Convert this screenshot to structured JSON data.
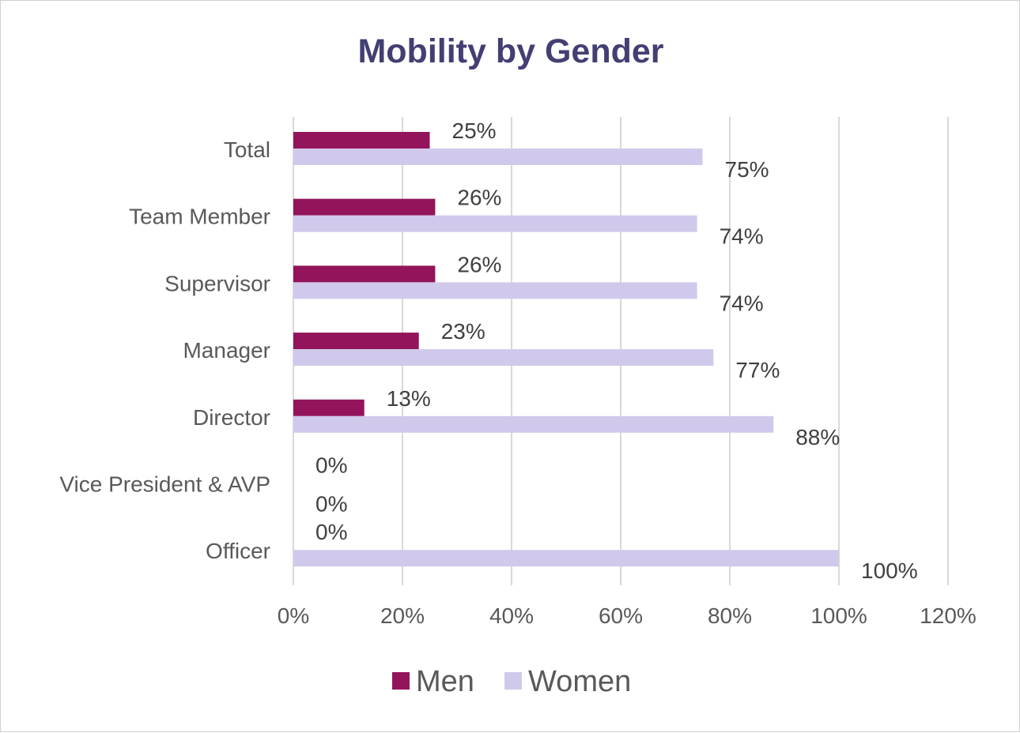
{
  "chart_data": {
    "type": "bar",
    "orientation": "horizontal",
    "title": "Mobility by Gender",
    "categories": [
      "Total",
      "Team Member",
      "Supervisor ",
      "Manager",
      "Director",
      "Vice President & AVP",
      "Officer "
    ],
    "series": [
      {
        "name": "Men",
        "color": "#93145a",
        "values": [
          25,
          26,
          26,
          23,
          13,
          0,
          0
        ],
        "labels": [
          "25%",
          "26%",
          "26%",
          "23%",
          "13%",
          "0%",
          "0%"
        ]
      },
      {
        "name": "Women",
        "color": "#d1c9eb",
        "values": [
          75,
          74,
          74,
          77,
          88,
          0,
          100
        ],
        "labels": [
          "75%",
          "74%",
          "74%",
          "77%",
          "88%",
          "0%",
          "100%"
        ]
      }
    ],
    "xlim": [
      0,
      120
    ],
    "xticks": [
      0,
      20,
      40,
      60,
      80,
      100,
      120
    ],
    "xtick_labels": [
      "0%",
      "20%",
      "40%",
      "60%",
      "80%",
      "100%",
      "120%"
    ],
    "grid": true,
    "legend_position": "bottom"
  },
  "colors": {
    "title": "#433f73",
    "text": "#595959",
    "label": "#404040",
    "grid": "#d9d9d9"
  }
}
